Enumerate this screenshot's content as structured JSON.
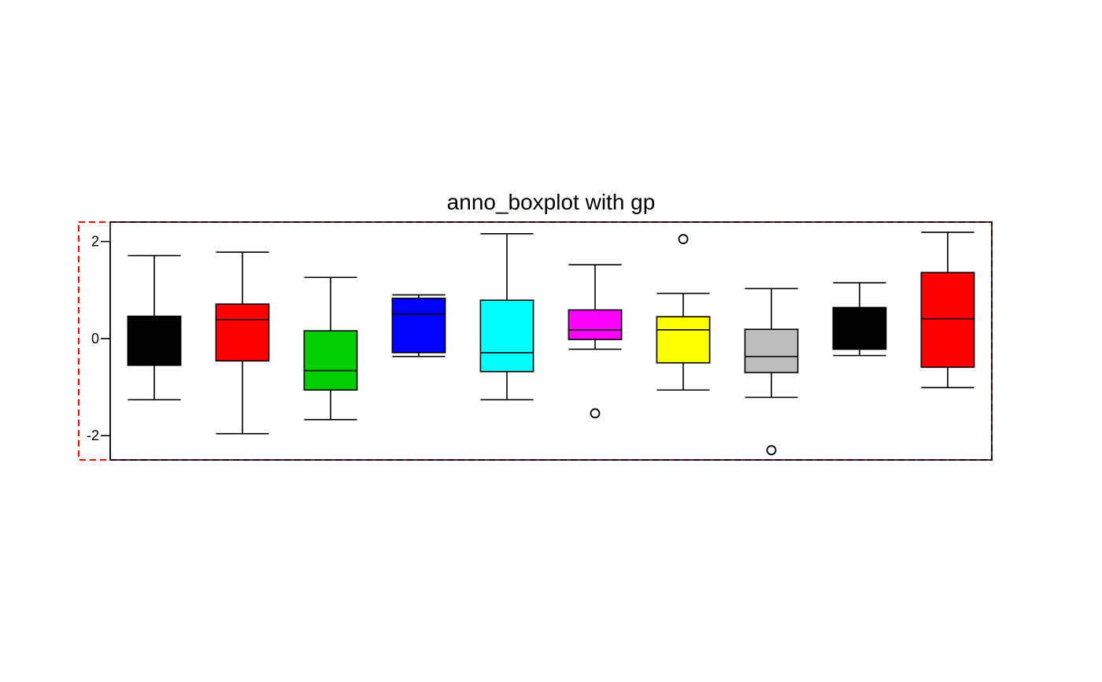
{
  "chart_data": {
    "type": "boxplot",
    "title": "anno_boxplot with gp",
    "xlabel": "",
    "ylabel": "",
    "ylim": [
      -2.5,
      2.4
    ],
    "yticks": [
      2,
      0,
      -2
    ],
    "ytick_labels": [
      "2",
      "0",
      "-2"
    ],
    "grid": false,
    "frame_color": "#000000",
    "outer_border_color": "#ff0000",
    "outer_border_style": "dashed",
    "boxes": [
      {
        "fill": "#000000",
        "whisker_low": -1.26,
        "q1": -0.55,
        "median": -0.1,
        "q3": 0.46,
        "whisker_high": 1.71,
        "outliers": []
      },
      {
        "fill": "#ff0000",
        "whisker_low": -1.96,
        "q1": -0.46,
        "median": 0.39,
        "q3": 0.71,
        "whisker_high": 1.78,
        "outliers": []
      },
      {
        "fill": "#00cd00",
        "whisker_low": -1.67,
        "q1": -1.06,
        "median": -0.66,
        "q3": 0.16,
        "whisker_high": 1.26,
        "outliers": []
      },
      {
        "fill": "#0000ff",
        "whisker_low": -0.37,
        "q1": -0.29,
        "median": 0.5,
        "q3": 0.83,
        "whisker_high": 0.9,
        "outliers": []
      },
      {
        "fill": "#00ffff",
        "whisker_low": -1.26,
        "q1": -0.68,
        "median": -0.29,
        "q3": 0.79,
        "whisker_high": 2.16,
        "outliers": []
      },
      {
        "fill": "#ff00ff",
        "whisker_low": -0.22,
        "q1": -0.02,
        "median": 0.18,
        "q3": 0.59,
        "whisker_high": 1.52,
        "outliers": [
          -1.54
        ]
      },
      {
        "fill": "#ffff00",
        "whisker_low": -1.06,
        "q1": -0.5,
        "median": 0.18,
        "q3": 0.45,
        "whisker_high": 0.93,
        "outliers": [
          2.05
        ]
      },
      {
        "fill": "#bebebe",
        "whisker_low": -1.21,
        "q1": -0.7,
        "median": -0.37,
        "q3": 0.19,
        "whisker_high": 1.03,
        "outliers": [
          -2.3
        ]
      },
      {
        "fill": "#000000",
        "whisker_low": -0.35,
        "q1": -0.22,
        "median": 0.34,
        "q3": 0.64,
        "whisker_high": 1.15,
        "outliers": []
      },
      {
        "fill": "#ff0000",
        "whisker_low": -1.01,
        "q1": -0.59,
        "median": 0.41,
        "q3": 1.36,
        "whisker_high": 2.19,
        "outliers": []
      }
    ]
  }
}
